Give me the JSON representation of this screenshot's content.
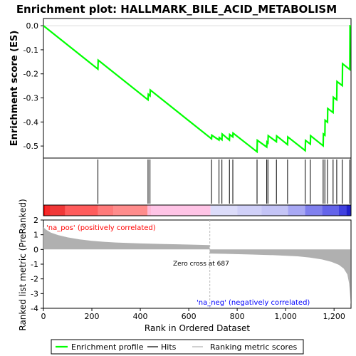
{
  "chart_data": {
    "type": "line",
    "title": "Enrichment plot: HALLMARK_BILE_ACID_METABOLISM",
    "es_panel": {
      "ylabel": "Enrichment score (ES)",
      "yticks": [
        "0.0",
        "-0.1",
        "-0.2",
        "-0.3",
        "-0.4",
        "-0.5"
      ],
      "ytick_values": [
        0.0,
        -0.1,
        -0.2,
        -0.3,
        -0.4,
        -0.5
      ],
      "ylim": [
        -0.55,
        0.03
      ],
      "line_color": "#00ff00",
      "profile": [
        [
          0,
          0.0
        ],
        [
          225,
          -0.18
        ],
        [
          226,
          -0.143
        ],
        [
          432,
          -0.308
        ],
        [
          433,
          -0.285
        ],
        [
          440,
          -0.291
        ],
        [
          441,
          -0.267
        ],
        [
          694,
          -0.47
        ],
        [
          695,
          -0.455
        ],
        [
          725,
          -0.475
        ],
        [
          726,
          -0.465
        ],
        [
          737,
          -0.474
        ],
        [
          738,
          -0.45
        ],
        [
          768,
          -0.475
        ],
        [
          769,
          -0.452
        ],
        [
          782,
          -0.462
        ],
        [
          783,
          -0.446
        ],
        [
          882,
          -0.524
        ],
        [
          883,
          -0.476
        ],
        [
          922,
          -0.504
        ],
        [
          923,
          -0.483
        ],
        [
          927,
          -0.487
        ],
        [
          928,
          -0.457
        ],
        [
          962,
          -0.482
        ],
        [
          963,
          -0.458
        ],
        [
          1008,
          -0.494
        ],
        [
          1009,
          -0.462
        ],
        [
          1081,
          -0.519
        ],
        [
          1082,
          -0.477
        ],
        [
          1102,
          -0.492
        ],
        [
          1103,
          -0.457
        ],
        [
          1155,
          -0.499
        ],
        [
          1156,
          -0.45
        ],
        [
          1162,
          -0.455
        ],
        [
          1163,
          -0.393
        ],
        [
          1173,
          -0.401
        ],
        [
          1174,
          -0.344
        ],
        [
          1196,
          -0.361
        ],
        [
          1197,
          -0.297
        ],
        [
          1211,
          -0.308
        ],
        [
          1212,
          -0.232
        ],
        [
          1234,
          -0.249
        ],
        [
          1235,
          -0.158
        ],
        [
          1265,
          -0.182
        ],
        [
          1266,
          0.003
        ]
      ]
    },
    "hits": [
      225,
      432,
      440,
      694,
      725,
      737,
      768,
      782,
      882,
      922,
      927,
      962,
      1008,
      1081,
      1102,
      1155,
      1162,
      1173,
      1196,
      1211,
      1234,
      1265
    ],
    "metric_panel": {
      "ylabel": "Ranked list metric (PreRanked)",
      "yticks": [
        "2",
        "1",
        "0",
        "-1",
        "-2",
        "-3",
        "-4"
      ],
      "ytick_values": [
        2,
        1,
        0,
        -1,
        -2,
        -3,
        -4
      ],
      "ylim": [
        -4,
        2
      ],
      "fill_color": "#b0b0b0",
      "curve": [
        [
          0,
          1.5
        ],
        [
          10,
          1.35
        ],
        [
          30,
          1.15
        ],
        [
          60,
          0.98
        ],
        [
          100,
          0.82
        ],
        [
          150,
          0.68
        ],
        [
          200,
          0.58
        ],
        [
          250,
          0.52
        ],
        [
          300,
          0.47
        ],
        [
          400,
          0.41
        ],
        [
          500,
          0.37
        ],
        [
          600,
          0.33
        ],
        [
          686,
          0.29
        ],
        [
          687,
          -0.28
        ],
        [
          750,
          -0.3
        ],
        [
          850,
          -0.34
        ],
        [
          950,
          -0.39
        ],
        [
          1050,
          -0.47
        ],
        [
          1100,
          -0.55
        ],
        [
          1150,
          -0.68
        ],
        [
          1190,
          -0.85
        ],
        [
          1220,
          -1.05
        ],
        [
          1240,
          -1.3
        ],
        [
          1255,
          -1.7
        ],
        [
          1262,
          -2.3
        ],
        [
          1266,
          -3.0
        ],
        [
          1269,
          -3.75
        ]
      ],
      "pos_label": "'na_pos' (positively correlated)",
      "neg_label": "'na_neg' (negatively correlated)",
      "zero_cross_label": "Zero cross at 687",
      "zero_cross": 687,
      "pos_color": "#ff0000",
      "neg_color": "#0000ff"
    },
    "xlabel": "Rank in Ordered Dataset",
    "xticks": [
      "0",
      "200",
      "400",
      "600",
      "800",
      "1,000",
      "1,200"
    ],
    "xtick_values": [
      0,
      200,
      400,
      600,
      800,
      1000,
      1200
    ],
    "xlim": [
      0,
      1270
    ],
    "heat_bands": [
      [
        0,
        8,
        "#e80000"
      ],
      [
        8,
        28,
        "#f52a2a"
      ],
      [
        28,
        90,
        "#f03838"
      ],
      [
        90,
        225,
        "#ff5c5c"
      ],
      [
        225,
        290,
        "#ff7a7a"
      ],
      [
        290,
        430,
        "#ff8c8c"
      ],
      [
        430,
        445,
        "#ffb8d8"
      ],
      [
        445,
        690,
        "#ffc4e6"
      ],
      [
        690,
        800,
        "#dcdcfa"
      ],
      [
        800,
        900,
        "#d0d0f8"
      ],
      [
        900,
        1010,
        "#c4c4f6"
      ],
      [
        1010,
        1080,
        "#a8a8f4"
      ],
      [
        1080,
        1150,
        "#8080ee"
      ],
      [
        1150,
        1220,
        "#6464ea"
      ],
      [
        1220,
        1250,
        "#4040e0"
      ],
      [
        1250,
        1270,
        "#2020cc"
      ]
    ],
    "legend": {
      "items": [
        "Enrichment profile",
        "Hits",
        "Ranking metric scores"
      ]
    }
  }
}
